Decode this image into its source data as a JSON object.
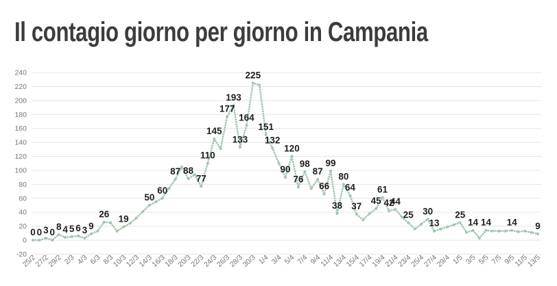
{
  "title": "Il contagio giorno per giorno in Campania",
  "chart_data": {
    "type": "line",
    "title": "Il contagio giorno per giorno in Campania",
    "legend": "none",
    "grid": "horizontal",
    "line_style": "dotted",
    "ylim": [
      -20,
      240
    ],
    "y_ticks": [
      240,
      220,
      200,
      180,
      160,
      140,
      120,
      100,
      80,
      60,
      40,
      20,
      0,
      -20
    ],
    "x_tick_labels": [
      "25/2",
      "27/2",
      "29/2",
      "2/3",
      "4/3",
      "6/3",
      "8/3",
      "10/3",
      "12/3",
      "14/3",
      "16/3",
      "18/3",
      "20/3",
      "22/3",
      "24/3",
      "26/3",
      "28/3",
      "30/3",
      "1/4",
      "3/4",
      "5/4",
      "7/4",
      "9/4",
      "11/4",
      "13/4",
      "15/4",
      "17/4",
      "19/4",
      "21/4",
      "23/4",
      "25/4",
      "27/4",
      "29/4",
      "1/5",
      "3/5",
      "5/5",
      "7/5",
      "9/5",
      "11/5",
      "13/5"
    ],
    "dates": [
      "25/2",
      "26/2",
      "27/2",
      "28/2",
      "29/2",
      "1/3",
      "2/3",
      "3/3",
      "4/3",
      "5/3",
      "6/3",
      "7/3",
      "8/3",
      "9/3",
      "10/3",
      "11/3",
      "12/3",
      "13/3",
      "14/3",
      "15/3",
      "16/3",
      "17/3",
      "18/3",
      "19/3",
      "20/3",
      "21/3",
      "22/3",
      "23/3",
      "24/3",
      "25/3",
      "26/3",
      "27/3",
      "28/3",
      "29/3",
      "30/3",
      "31/3",
      "1/4",
      "2/4",
      "3/4",
      "4/4",
      "5/4",
      "6/4",
      "7/4",
      "8/4",
      "9/4",
      "10/4",
      "11/4",
      "12/4",
      "13/4",
      "14/4",
      "15/4",
      "16/4",
      "17/4",
      "18/4",
      "19/4",
      "20/4",
      "21/4",
      "22/4",
      "23/4",
      "24/4",
      "25/4",
      "26/4",
      "27/4",
      "28/4",
      "29/4",
      "30/4",
      "1/5",
      "2/5",
      "3/5",
      "4/5",
      "5/5",
      "6/5",
      "7/5",
      "8/5",
      "9/5",
      "10/5",
      "11/5",
      "12/5",
      "13/5"
    ],
    "values": [
      0,
      0,
      3,
      0,
      8,
      4,
      5,
      6,
      3,
      9,
      13,
      26,
      25,
      13,
      19,
      24,
      32,
      41,
      50,
      55,
      60,
      74,
      87,
      105,
      88,
      94,
      77,
      110,
      145,
      131,
      177,
      193,
      133,
      164,
      225,
      222,
      151,
      132,
      110,
      90,
      120,
      76,
      98,
      74,
      87,
      66,
      99,
      38,
      80,
      64,
      37,
      29,
      38,
      45,
      61,
      42,
      44,
      33,
      25,
      16,
      23,
      30,
      13,
      16,
      19,
      22,
      25,
      11,
      14,
      3,
      14,
      13,
      13,
      13,
      14,
      12,
      13,
      11,
      9
    ],
    "labeled_indices": [
      0,
      1,
      2,
      3,
      4,
      5,
      6,
      7,
      8,
      9,
      11,
      14,
      18,
      20,
      22,
      24,
      26,
      27,
      28,
      30,
      31,
      32,
      33,
      34,
      36,
      37,
      39,
      40,
      41,
      42,
      44,
      45,
      46,
      47,
      48,
      49,
      50,
      53,
      54,
      55,
      56,
      58,
      61,
      62,
      66,
      68,
      70,
      74,
      78
    ],
    "visible_point_labels": [
      0,
      0,
      3,
      0,
      8,
      4,
      5,
      6,
      3,
      9,
      26,
      19,
      50,
      60,
      87,
      88,
      77,
      110,
      145,
      177,
      193,
      133,
      164,
      225,
      151,
      132,
      90,
      120,
      76,
      98,
      87,
      66,
      99,
      38,
      80,
      64,
      37,
      45,
      61,
      42,
      44,
      25,
      30,
      13,
      25,
      14,
      14,
      14,
      9
    ],
    "colors": {
      "line": "#a3c6b0",
      "data_label": "#1d1d1d",
      "axis_label": "#757575",
      "grid": "#e5e5e5",
      "title": "#3c3c3c",
      "background": "#ffffff"
    }
  }
}
